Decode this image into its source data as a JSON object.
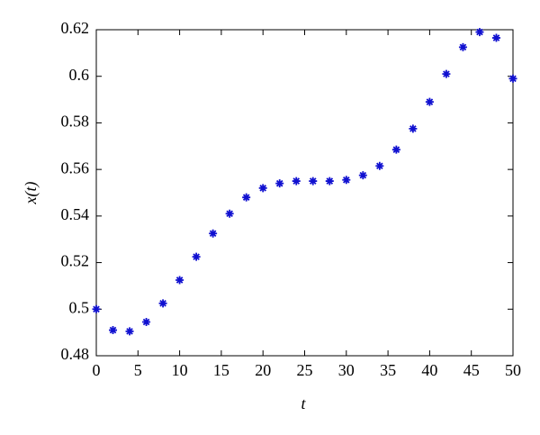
{
  "chart_data": {
    "type": "scatter",
    "xlabel": "t",
    "ylabel": "x(t)",
    "x": [
      0,
      2,
      4,
      6,
      8,
      10,
      12,
      14,
      16,
      18,
      20,
      22,
      24,
      26,
      28,
      30,
      32,
      34,
      36,
      38,
      40,
      42,
      44,
      46,
      48,
      50
    ],
    "series": [
      {
        "color": "#1010d0",
        "values": [
          0.5,
          0.491,
          0.4905,
          0.4945,
          0.5025,
          0.5125,
          0.5225,
          0.5325,
          0.541,
          0.548,
          0.552,
          0.554,
          0.555,
          0.555,
          0.555,
          0.5555,
          0.5575,
          0.5615,
          0.5685,
          0.5775,
          0.589,
          0.601,
          0.6125,
          0.619,
          0.6165,
          0.599
        ]
      }
    ],
    "xlim": [
      0,
      50
    ],
    "xticks": [
      0,
      5,
      10,
      15,
      20,
      25,
      30,
      35,
      40,
      45,
      50
    ],
    "ylim": [
      0.48,
      0.62
    ],
    "yticks": [
      0.48,
      0.5,
      0.52,
      0.54,
      0.56,
      0.58,
      0.6,
      0.62
    ]
  }
}
